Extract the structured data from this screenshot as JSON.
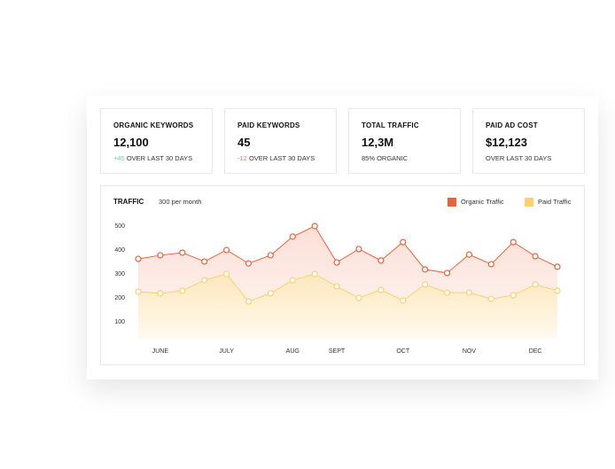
{
  "cards": [
    {
      "label": "ORGANIC KEYWORDS",
      "value": "12,100",
      "delta": "+45",
      "note": "OVER LAST 30 DAYS"
    },
    {
      "label": "PAID KEYWORDS",
      "value": "45",
      "delta": "-12",
      "note": "OVER LAST 30 DAYS"
    },
    {
      "label": "TOTAL TRAFFIC",
      "value": "12,3M",
      "note": "85% ORGANIC"
    },
    {
      "label": "PAID AD COST",
      "value": "$12,123",
      "note": "OVER LAST 30 DAYS"
    }
  ],
  "chart_data": {
    "type": "line",
    "title": "TRAFFIC",
    "subtitle": "300 per month",
    "categories": [
      null,
      "JUNE",
      null,
      null,
      "JULY",
      null,
      null,
      "AUG",
      null,
      "SEPT",
      null,
      null,
      "OCT",
      null,
      null,
      "NOV",
      null,
      null,
      "DEC",
      null
    ],
    "series": [
      {
        "name": "Organic Traffic",
        "color": "#e8633a",
        "values": [
          363,
          378,
          389,
          352,
          400,
          344,
          378,
          456,
          500,
          348,
          404,
          356,
          433,
          319,
          304,
          381,
          341,
          433,
          374,
          330
        ]
      },
      {
        "name": "Paid Traffic",
        "color": "#f9d26f",
        "values": [
          226,
          219,
          230,
          274,
          300,
          185,
          219,
          274,
          300,
          248,
          200,
          233,
          189,
          256,
          222,
          222,
          196,
          211,
          256,
          230
        ]
      }
    ],
    "ylim": [
      0,
      500
    ],
    "yticks": [
      100,
      200,
      300,
      400,
      500
    ],
    "legend": "top-right"
  }
}
